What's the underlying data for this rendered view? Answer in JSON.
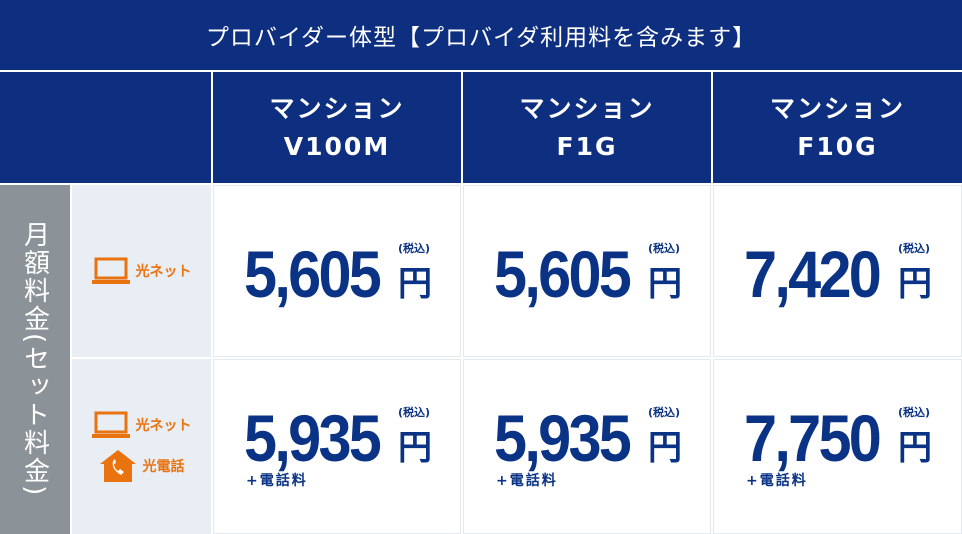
{
  "title": "プロバイダー体型【プロバイダ利用料を含みます】",
  "side_label": "月額料金(セット料金)",
  "columns": [
    {
      "line1": "マンション",
      "line2": "V100M"
    },
    {
      "line1": "マンション",
      "line2": "F1G"
    },
    {
      "line1": "マンション",
      "line2": "F10G"
    }
  ],
  "rows": [
    {
      "labels": [
        "光ネット"
      ],
      "icons": [
        "laptop-icon"
      ],
      "prices": [
        "5,605",
        "5,605",
        "7,420"
      ],
      "note": ""
    },
    {
      "labels": [
        "光ネット",
        "光電話"
      ],
      "icons": [
        "laptop-icon",
        "house-phone-icon"
      ],
      "prices": [
        "5,935",
        "5,935",
        "7,750"
      ],
      "note": "+電話料"
    }
  ],
  "yen": "円",
  "tax": "(税込)",
  "colors": {
    "navy": "#0e2f80",
    "price": "#0b3385",
    "orange": "#e8730f",
    "label_bg": "#e9edf4",
    "side_bg": "#8b9298"
  }
}
